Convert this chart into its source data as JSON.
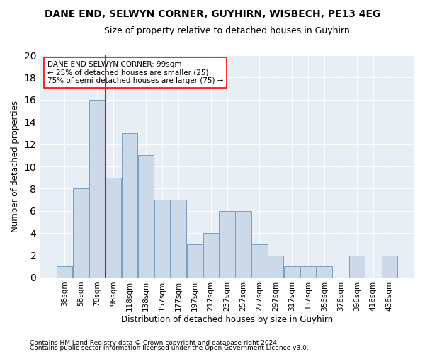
{
  "title": "DANE END, SELWYN CORNER, GUYHIRN, WISBECH, PE13 4EG",
  "subtitle": "Size of property relative to detached houses in Guyhirn",
  "xlabel": "Distribution of detached houses by size in Guyhirn",
  "ylabel": "Number of detached properties",
  "categories": [
    "38sqm",
    "58sqm",
    "78sqm",
    "98sqm",
    "118sqm",
    "138sqm",
    "157sqm",
    "177sqm",
    "197sqm",
    "217sqm",
    "237sqm",
    "257sqm",
    "277sqm",
    "297sqm",
    "317sqm",
    "337sqm",
    "356sqm",
    "376sqm",
    "396sqm",
    "416sqm",
    "436sqm"
  ],
  "values": [
    1,
    8,
    16,
    9,
    13,
    11,
    7,
    7,
    3,
    4,
    6,
    6,
    3,
    2,
    1,
    1,
    1,
    0,
    2,
    0,
    2
  ],
  "bar_color": "#ccd9e8",
  "bar_edge_color": "#7a9dbf",
  "red_line_after_bar": 2,
  "ylim": [
    0,
    20
  ],
  "yticks": [
    0,
    2,
    4,
    6,
    8,
    10,
    12,
    14,
    16,
    18,
    20
  ],
  "annotation_text": "DANE END SELWYN CORNER: 99sqm\n← 25% of detached houses are smaller (25)\n75% of semi-detached houses are larger (75) →",
  "footnote1": "Contains HM Land Registry data © Crown copyright and database right 2024.",
  "footnote2": "Contains public sector information licensed under the Open Government Licence v3.0.",
  "title_fontsize": 10,
  "subtitle_fontsize": 9,
  "xlabel_fontsize": 8.5,
  "ylabel_fontsize": 8.5,
  "tick_fontsize": 7.5,
  "annot_fontsize": 7.5,
  "footnote_fontsize": 6.5,
  "bg_color": "#e8eef5"
}
